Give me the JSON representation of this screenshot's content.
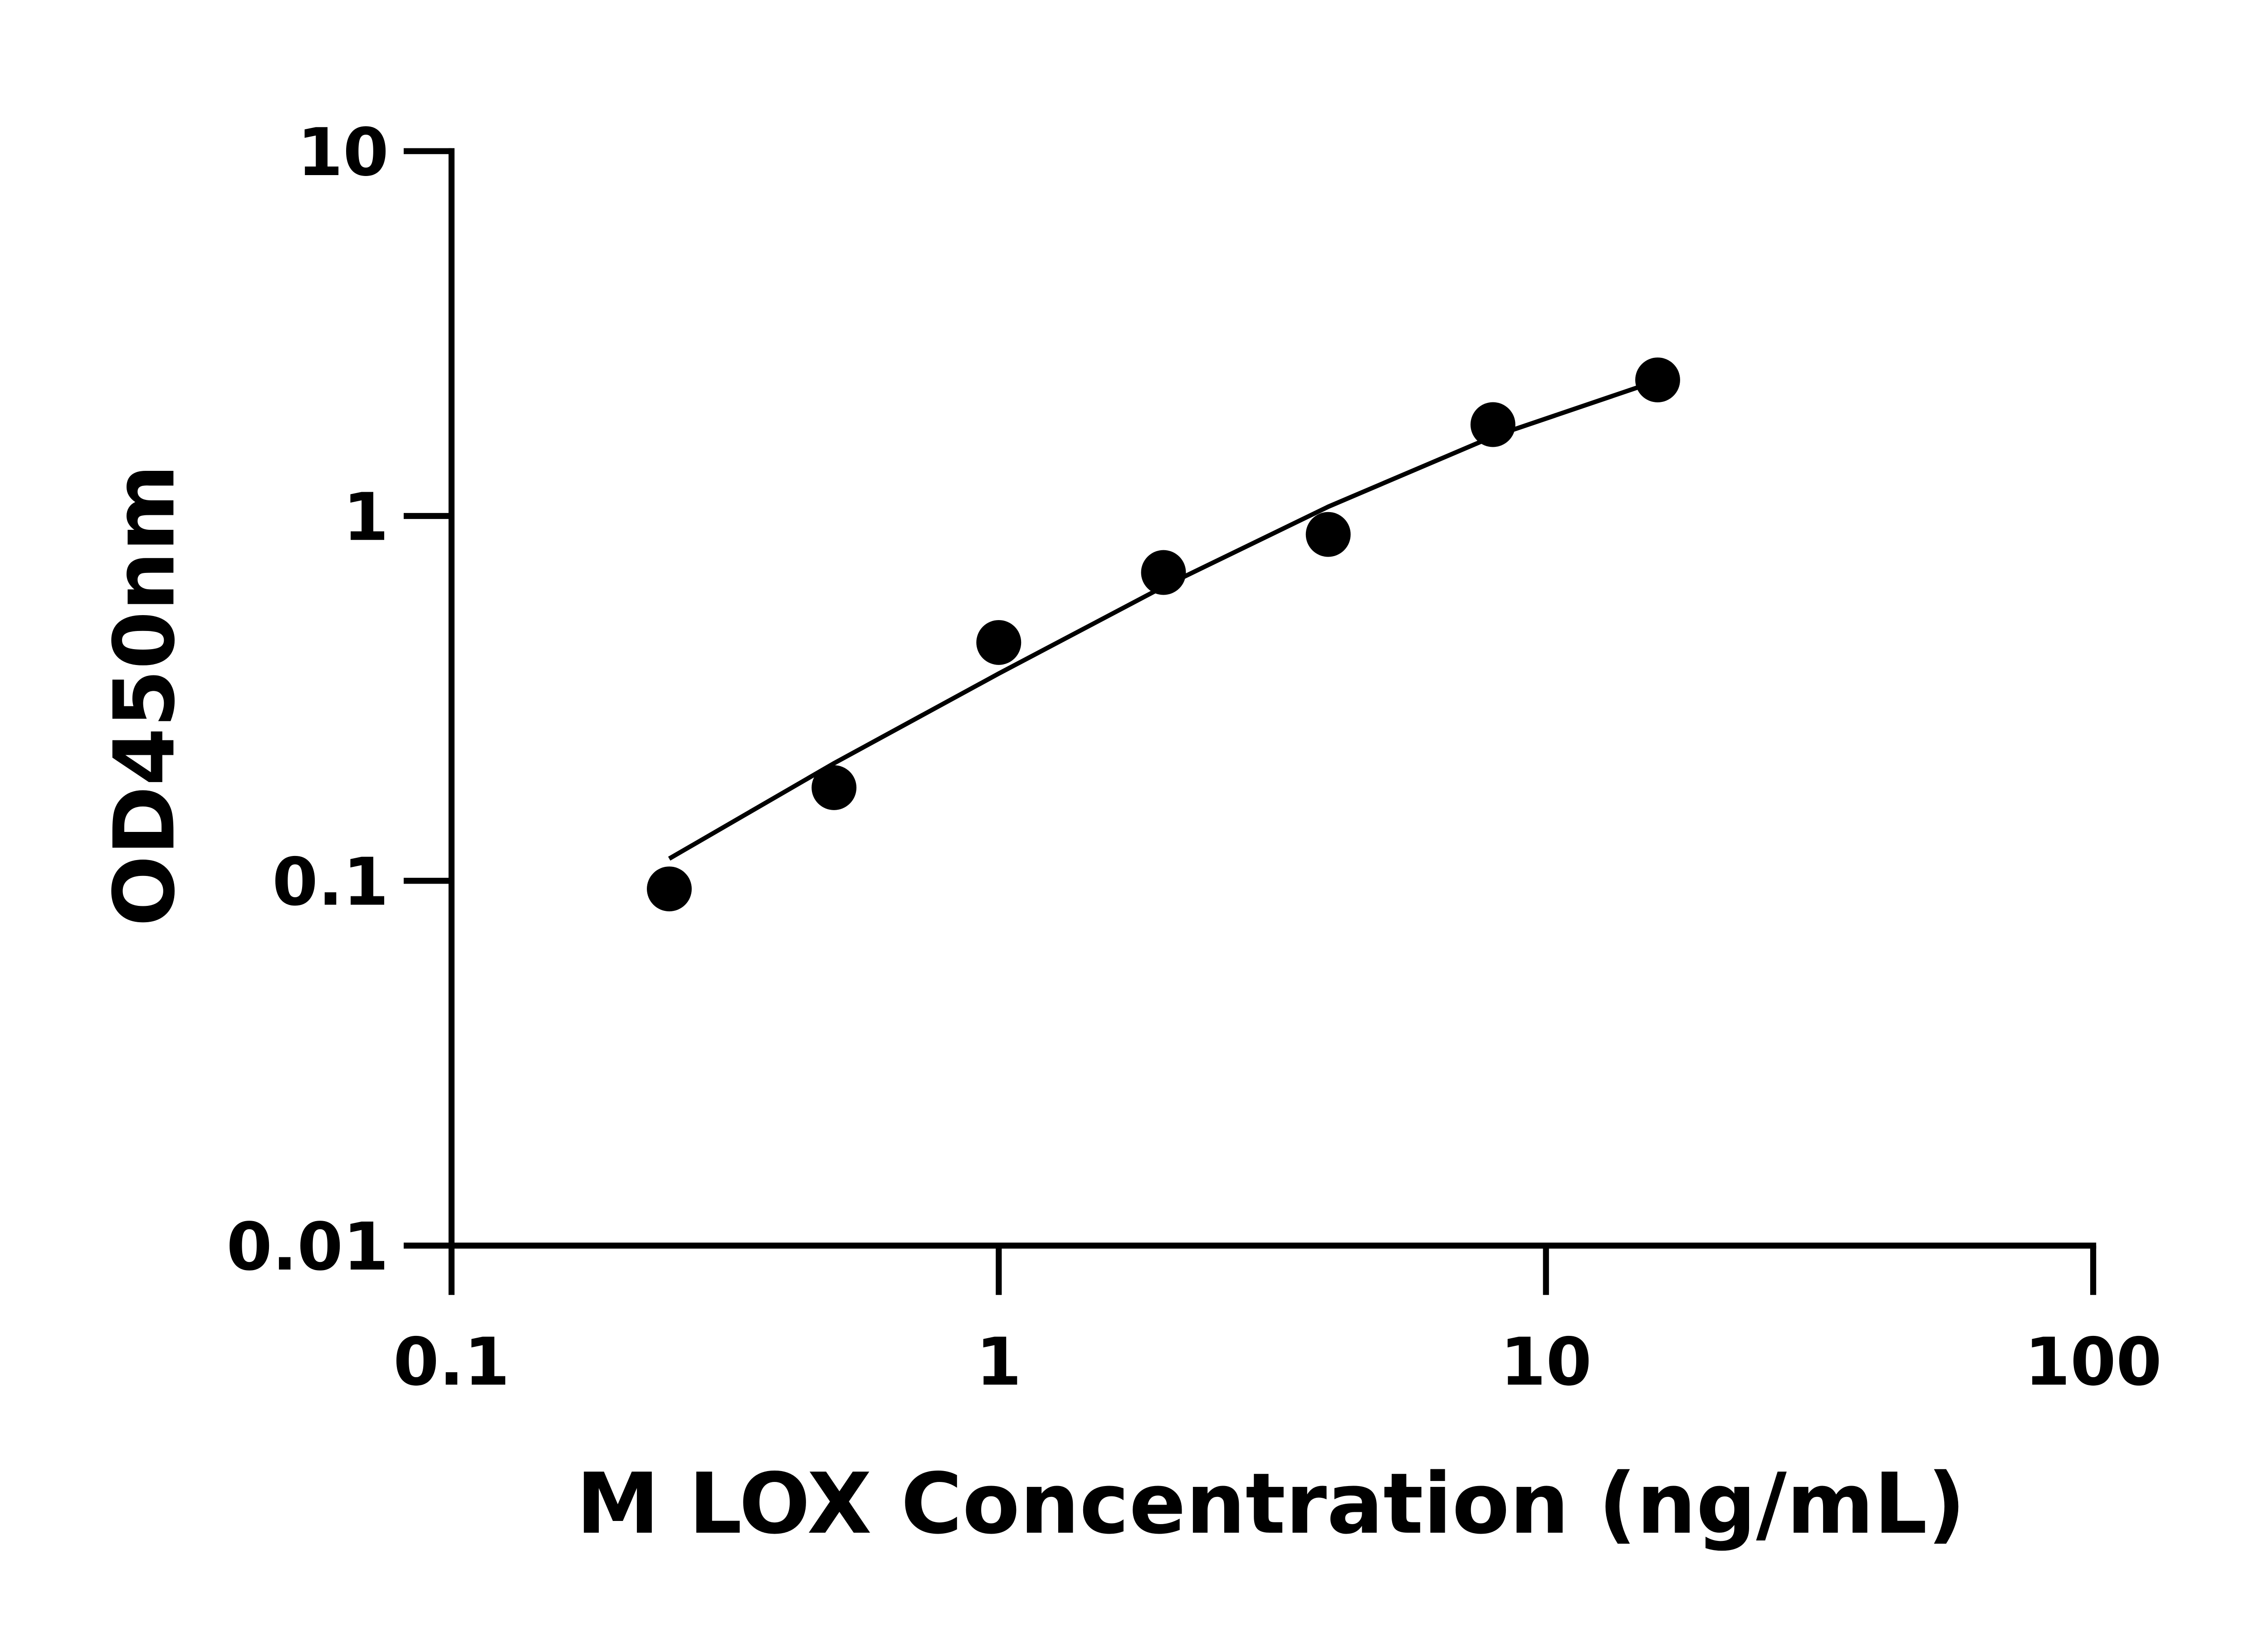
{
  "chart_data": {
    "type": "scatter",
    "title": "",
    "xlabel": "M LOX Concentration (ng/mL)",
    "ylabel": "OD450nm",
    "x_scale": "log",
    "y_scale": "log",
    "xlim": [
      0.1,
      100
    ],
    "ylim": [
      0.01,
      10
    ],
    "x_ticks": [
      "0.1",
      "1",
      "10",
      "100"
    ],
    "y_ticks": [
      "0.01",
      "0.1",
      "1",
      "10"
    ],
    "grid": false,
    "legend": "none",
    "marker_color": "#000000",
    "points": {
      "x": [
        0.25,
        0.5,
        1,
        2,
        4,
        8,
        16
      ],
      "y": [
        0.095,
        0.18,
        0.45,
        0.7,
        0.89,
        1.78,
        2.36
      ]
    },
    "fit_curve": {
      "x": [
        0.25,
        0.5,
        1,
        2,
        4,
        8,
        16
      ],
      "y": [
        0.115,
        0.21,
        0.37,
        0.64,
        1.06,
        1.65,
        2.35
      ]
    }
  }
}
